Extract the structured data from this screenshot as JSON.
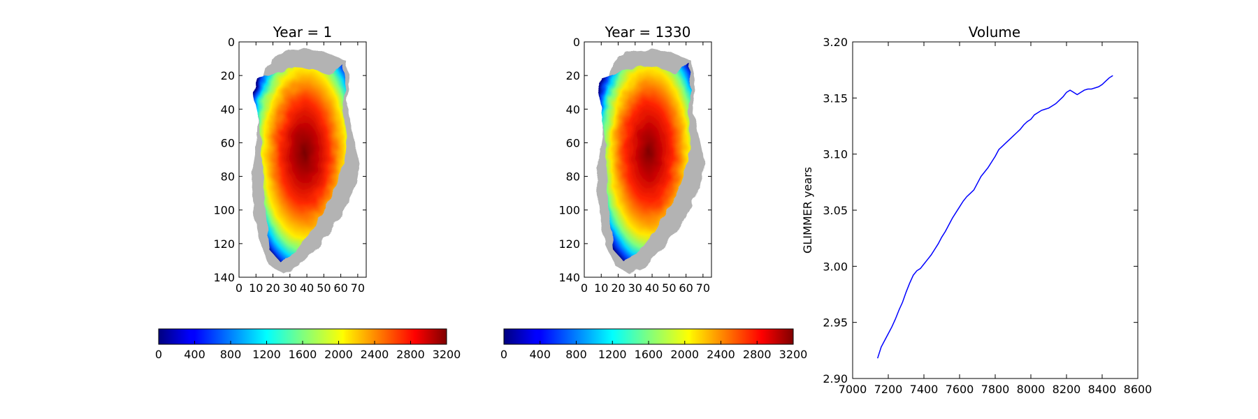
{
  "chart_data": [
    {
      "type": "heatmap",
      "title": "Year = 1",
      "xlim": [
        0,
        75
      ],
      "ylim": [
        140,
        0
      ],
      "x_ticks": [
        "0",
        "10",
        "20",
        "30",
        "40",
        "50",
        "60",
        "70"
      ],
      "y_ticks": [
        "0",
        "20",
        "40",
        "60",
        "80",
        "100",
        "120",
        "140"
      ],
      "colormap": "jet",
      "mask_color": "#b3b3b3",
      "colorbar": {
        "min": 0,
        "max": 3200,
        "ticks": [
          "0",
          "400",
          "800",
          "1200",
          "1600",
          "2000",
          "2400",
          "2800",
          "3200"
        ]
      }
    },
    {
      "type": "heatmap",
      "title": "Year = 1330",
      "xlim": [
        0,
        75
      ],
      "ylim": [
        140,
        0
      ],
      "x_ticks": [
        "0",
        "10",
        "20",
        "30",
        "40",
        "50",
        "60",
        "70"
      ],
      "y_ticks": [
        "0",
        "20",
        "40",
        "60",
        "80",
        "100",
        "120",
        "140"
      ],
      "colormap": "jet",
      "mask_color": "#b3b3b3",
      "colorbar": {
        "min": 0,
        "max": 3200,
        "ticks": [
          "0",
          "400",
          "800",
          "1200",
          "1600",
          "2000",
          "2400",
          "2800",
          "3200"
        ]
      }
    },
    {
      "type": "line",
      "title": "Volume",
      "ylabel": "GLIMMER years",
      "xlim": [
        7000,
        8600
      ],
      "ylim": [
        2.9,
        3.2
      ],
      "x_ticks": [
        "7000",
        "7200",
        "7400",
        "7600",
        "7800",
        "8000",
        "8200",
        "8400",
        "8600"
      ],
      "y_ticks": [
        "2.90",
        "2.95",
        "3.00",
        "3.05",
        "3.10",
        "3.15",
        "3.20"
      ],
      "line_color": "#0000ff",
      "series": [
        {
          "x": [
            7140,
            7160,
            7180,
            7200,
            7220,
            7240,
            7260,
            7280,
            7300,
            7320,
            7340,
            7360,
            7380,
            7400,
            7420,
            7440,
            7460,
            7480,
            7500,
            7520,
            7540,
            7560,
            7580,
            7600,
            7620,
            7640,
            7660,
            7680,
            7700,
            7720,
            7740,
            7760,
            7780,
            7800,
            7820,
            7840,
            7860,
            7880,
            7900,
            7920,
            7940,
            7960,
            7980,
            8000,
            8020,
            8040,
            8060,
            8080,
            8100,
            8120,
            8140,
            8160,
            8180,
            8200,
            8220,
            8240,
            8260,
            8280,
            8300,
            8320,
            8340,
            8360,
            8380,
            8400,
            8420,
            8440,
            8460
          ],
          "values": [
            2.918,
            2.928,
            2.934,
            2.94,
            2.946,
            2.953,
            2.961,
            2.968,
            2.977,
            2.985,
            2.992,
            2.996,
            2.998,
            3.002,
            3.006,
            3.01,
            3.015,
            3.02,
            3.026,
            3.031,
            3.037,
            3.043,
            3.048,
            3.053,
            3.058,
            3.062,
            3.065,
            3.068,
            3.074,
            3.08,
            3.084,
            3.088,
            3.093,
            3.098,
            3.104,
            3.107,
            3.11,
            3.113,
            3.116,
            3.119,
            3.122,
            3.126,
            3.129,
            3.131,
            3.135,
            3.137,
            3.139,
            3.14,
            3.141,
            3.143,
            3.145,
            3.148,
            3.151,
            3.155,
            3.157,
            3.155,
            3.153,
            3.155,
            3.157,
            3.158,
            3.158,
            3.159,
            3.16,
            3.162,
            3.165,
            3.168,
            3.17
          ]
        }
      ]
    }
  ]
}
